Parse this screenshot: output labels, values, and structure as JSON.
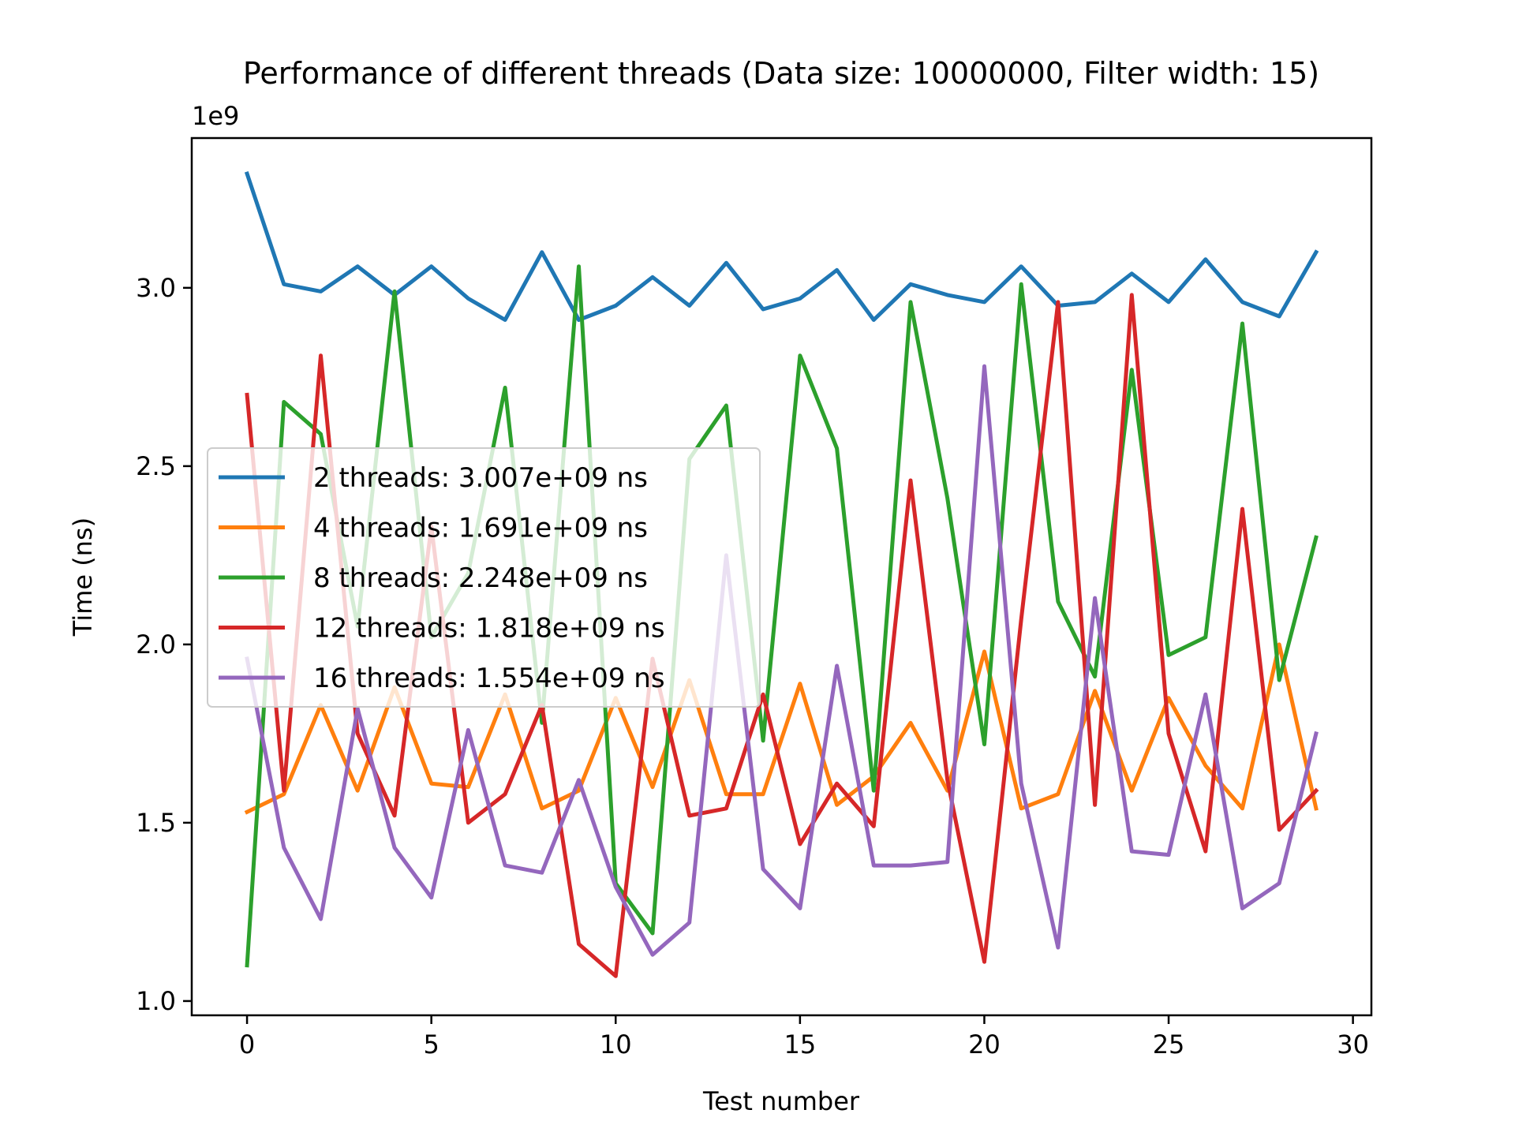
{
  "chart_data": {
    "type": "line",
    "title": "Performance of different threads (Data size: 10000000, Filter width: 15)",
    "xlabel": "Test number",
    "ylabel": "Time (ns)",
    "y_offset_label": "1e9",
    "xlim": [
      -1.5,
      30.5
    ],
    "ylim": [
      0.96,
      3.42
    ],
    "xticks": [
      0,
      5,
      10,
      15,
      20,
      25,
      30
    ],
    "xtick_labels": [
      "0",
      "5",
      "10",
      "15",
      "20",
      "25",
      "30"
    ],
    "yticks": [
      1.0,
      1.5,
      2.0,
      2.5,
      3.0
    ],
    "ytick_labels": [
      "1.0",
      "1.5",
      "2.0",
      "2.5",
      "3.0"
    ],
    "grid": false,
    "legend_position": "center-left",
    "x": [
      0,
      1,
      2,
      3,
      4,
      5,
      6,
      7,
      8,
      9,
      10,
      11,
      12,
      13,
      14,
      15,
      16,
      17,
      18,
      19,
      20,
      21,
      22,
      23,
      24,
      25,
      26,
      27,
      28,
      29
    ],
    "series": [
      {
        "name": "2 threads: 3.007e+09 ns",
        "color": "#1f77b4",
        "values": [
          3.32,
          3.01,
          2.99,
          3.06,
          2.98,
          3.06,
          2.97,
          2.91,
          3.1,
          2.91,
          2.95,
          3.03,
          2.95,
          3.07,
          2.94,
          2.97,
          3.05,
          2.91,
          3.01,
          2.98,
          2.96,
          3.06,
          2.95,
          2.96,
          3.04,
          2.96,
          3.08,
          2.96,
          2.92,
          3.1
        ]
      },
      {
        "name": "4 threads: 1.691e+09 ns",
        "color": "#ff7f0e",
        "values": [
          1.53,
          1.58,
          1.83,
          1.59,
          1.88,
          1.61,
          1.6,
          1.86,
          1.54,
          1.59,
          1.85,
          1.6,
          1.9,
          1.58,
          1.58,
          1.89,
          1.55,
          1.63,
          1.78,
          1.59,
          1.98,
          1.54,
          1.58,
          1.87,
          1.59,
          1.85,
          1.66,
          1.54,
          2.0,
          1.54
        ]
      },
      {
        "name": "8 threads: 2.248e+09 ns",
        "color": "#2ca02c",
        "values": [
          1.1,
          2.68,
          2.59,
          2.05,
          2.99,
          2.02,
          2.2,
          2.72,
          1.78,
          3.06,
          1.33,
          1.19,
          2.52,
          2.67,
          1.73,
          2.81,
          2.55,
          1.59,
          2.96,
          2.41,
          1.72,
          3.01,
          2.12,
          1.91,
          2.77,
          1.97,
          2.02,
          2.9,
          1.9,
          2.3
        ]
      },
      {
        "name": "12 threads: 1.818e+09 ns",
        "color": "#d62728",
        "values": [
          2.7,
          1.59,
          2.81,
          1.75,
          1.52,
          2.33,
          1.5,
          1.58,
          1.83,
          1.16,
          1.07,
          1.96,
          1.52,
          1.54,
          1.86,
          1.44,
          1.61,
          1.49,
          2.46,
          1.62,
          1.11,
          2.07,
          2.96,
          1.55,
          2.98,
          1.75,
          1.42,
          2.38,
          1.48,
          1.59
        ]
      },
      {
        "name": "16 threads: 1.554e+09 ns",
        "color": "#9467bd",
        "values": [
          1.96,
          1.43,
          1.23,
          1.82,
          1.43,
          1.29,
          1.76,
          1.38,
          1.36,
          1.62,
          1.32,
          1.13,
          1.22,
          2.25,
          1.37,
          1.26,
          1.94,
          1.38,
          1.38,
          1.39,
          2.78,
          1.61,
          1.15,
          2.13,
          1.42,
          1.41,
          1.86,
          1.26,
          1.33,
          1.75
        ]
      }
    ]
  }
}
